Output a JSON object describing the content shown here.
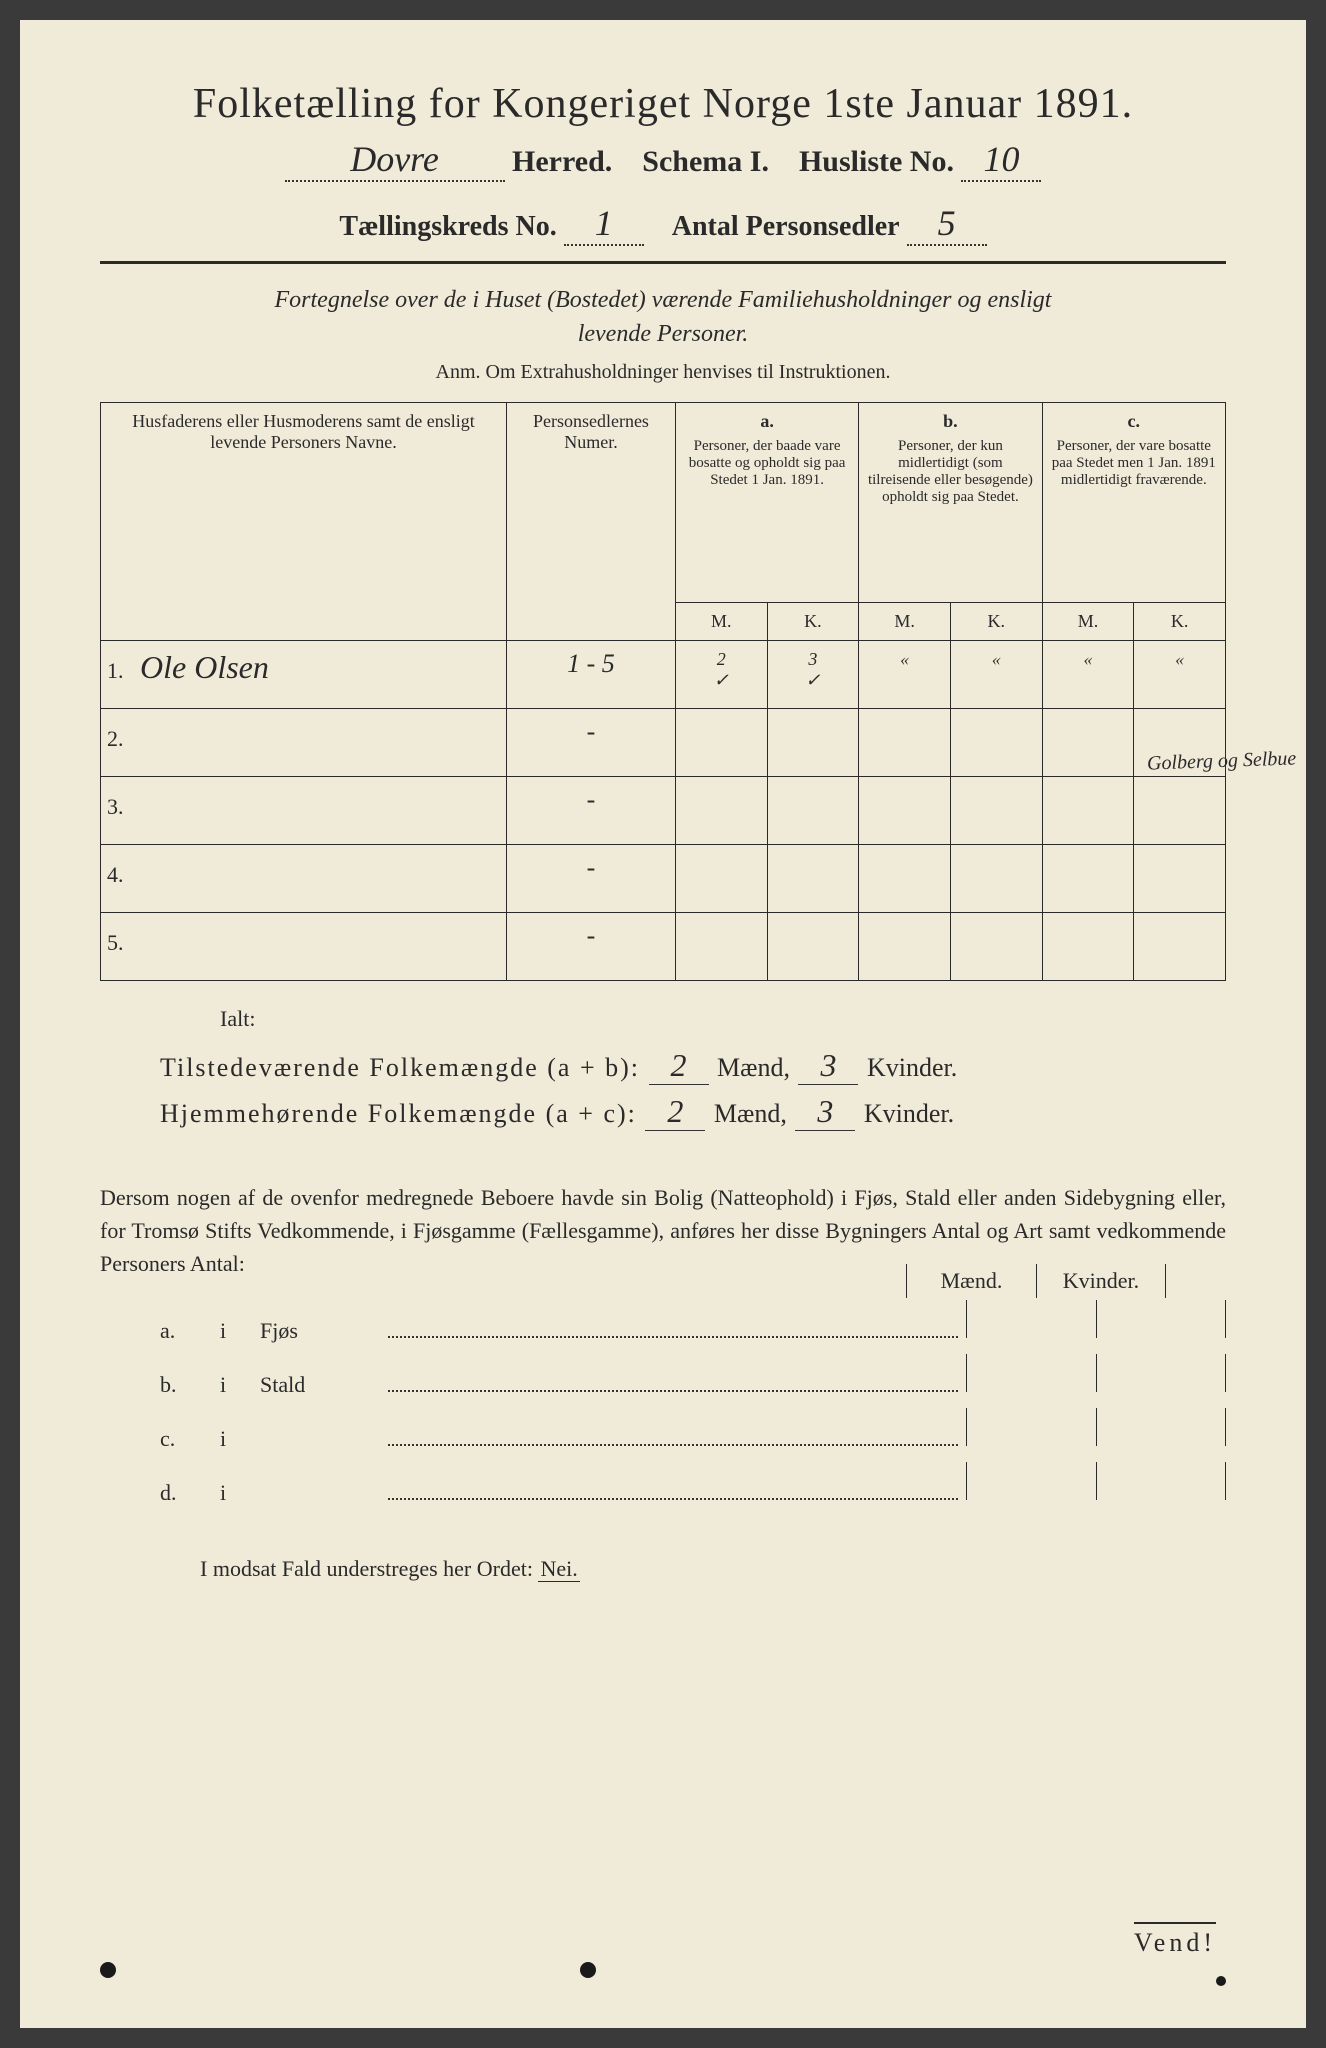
{
  "title": "Folketælling for Kongeriget Norge 1ste Januar 1891.",
  "herred_name": "Dovre",
  "herred_label": "Herred.",
  "schema_label": "Schema I.",
  "husliste_label": "Husliste No.",
  "husliste_no": "10",
  "kreds_label": "Tællingskreds No.",
  "kreds_no": "1",
  "antal_label": "Antal Personsedler",
  "antal_val": "5",
  "subtitle_line1": "Fortegnelse over de i Huset (Bostedet) værende Familiehusholdninger og ensligt",
  "subtitle_line2": "levende Personer.",
  "anm": "Anm. Om Extrahusholdninger henvises til Instruktionen.",
  "headers": {
    "name": "Husfaderens eller Husmoderens samt de ensligt levende Personers Navne.",
    "numer": "Personsedlernes Numer.",
    "a_label": "a.",
    "a_text": "Personer, der baade vare bosatte og opholdt sig paa Stedet 1 Jan. 1891.",
    "b_label": "b.",
    "b_text": "Personer, der kun midlertidigt (som tilreisende eller besøgende) opholdt sig paa Stedet.",
    "c_label": "c.",
    "c_text": "Personer, der vare bosatte paa Stedet men 1 Jan. 1891 midlertidigt fraværende.",
    "m": "M.",
    "k": "K."
  },
  "rows": [
    {
      "n": "1.",
      "name": "Ole Olsen",
      "numer": "1 - 5",
      "am": "2",
      "ak": "3",
      "bm": "«",
      "bk": "«",
      "cm": "«",
      "ck": "«",
      "tick_am": "✓",
      "tick_ak": "✓"
    },
    {
      "n": "2.",
      "name": "",
      "numer": "-",
      "am": "",
      "ak": "",
      "bm": "",
      "bk": "",
      "cm": "",
      "ck": ""
    },
    {
      "n": "3.",
      "name": "",
      "numer": "-",
      "am": "",
      "ak": "",
      "bm": "",
      "bk": "",
      "cm": "",
      "ck": ""
    },
    {
      "n": "4.",
      "name": "",
      "numer": "-",
      "am": "",
      "ak": "",
      "bm": "",
      "bk": "",
      "cm": "",
      "ck": ""
    },
    {
      "n": "5.",
      "name": "",
      "numer": "-",
      "am": "",
      "ak": "",
      "bm": "",
      "bk": "",
      "cm": "",
      "ck": ""
    }
  ],
  "margin_note": "Golberg og Selbue",
  "ialt": "Ialt:",
  "sum1_label": "Tilstedeværende Folkemængde (a + b):",
  "sum2_label": "Hjemmehørende Folkemængde (a + c):",
  "sum_m": "Mænd,",
  "sum_k": "Kvinder.",
  "sum1_m": "2",
  "sum1_k": "3",
  "sum2_m": "2",
  "sum2_k": "3",
  "para": "Dersom nogen af de ovenfor medregnede Beboere havde sin Bolig (Natteophold) i Fjøs, Stald eller anden Sidebygning eller, for Tromsø Stifts Vedkommende, i Fjøsgamme (Fællesgamme), anføres her disse Bygningers Antal og Art samt vedkommende Personers Antal:",
  "mk_m": "Mænd.",
  "mk_k": "Kvinder.",
  "ob": [
    {
      "l": "a.",
      "i": "i",
      "name": "Fjøs"
    },
    {
      "l": "b.",
      "i": "i",
      "name": "Stald"
    },
    {
      "l": "c.",
      "i": "i",
      "name": ""
    },
    {
      "l": "d.",
      "i": "i",
      "name": ""
    }
  ],
  "nei_line_pre": "I modsat Fald understreges her Ordet: ",
  "nei": "Nei.",
  "vend": "Vend!"
}
